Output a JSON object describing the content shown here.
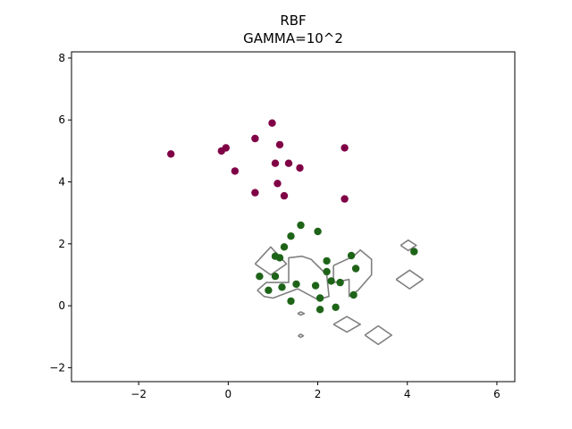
{
  "chart_data": {
    "type": "scatter",
    "title": "RBF",
    "subtitle": "GAMMA=10^2",
    "xlabel": "",
    "ylabel": "",
    "xlim": [
      -3.5,
      6.4
    ],
    "ylim": [
      -2.45,
      8.2
    ],
    "grid": false,
    "xticks": [
      -2,
      0,
      2,
      4,
      6
    ],
    "yticks": [
      -2,
      0,
      2,
      4,
      6,
      8
    ],
    "xtick_labels": [
      "−2",
      "0",
      "2",
      "4",
      "6"
    ],
    "ytick_labels": [
      "−2",
      "0",
      "2",
      "4",
      "6",
      "8"
    ],
    "series": [
      {
        "color": "#800046",
        "points": [
          [
            -1.28,
            4.9
          ],
          [
            -0.15,
            5.0
          ],
          [
            -0.05,
            5.1
          ],
          [
            0.15,
            4.35
          ],
          [
            0.6,
            5.4
          ],
          [
            0.6,
            3.65
          ],
          [
            0.98,
            5.9
          ],
          [
            1.05,
            4.6
          ],
          [
            1.1,
            3.95
          ],
          [
            1.15,
            5.2
          ],
          [
            1.25,
            3.55
          ],
          [
            1.35,
            4.6
          ],
          [
            1.6,
            4.45
          ],
          [
            2.6,
            5.1
          ],
          [
            2.6,
            3.45
          ]
        ]
      },
      {
        "color": "#1e6418",
        "points": [
          [
            0.7,
            0.95
          ],
          [
            0.9,
            0.5
          ],
          [
            1.05,
            1.6
          ],
          [
            1.05,
            0.95
          ],
          [
            1.15,
            1.55
          ],
          [
            1.2,
            0.6
          ],
          [
            1.25,
            1.9
          ],
          [
            1.4,
            2.25
          ],
          [
            1.4,
            0.15
          ],
          [
            1.52,
            0.7
          ],
          [
            1.62,
            2.6
          ],
          [
            1.95,
            0.65
          ],
          [
            2.0,
            2.4
          ],
          [
            2.05,
            0.25
          ],
          [
            2.05,
            -0.12
          ],
          [
            2.2,
            1.45
          ],
          [
            2.2,
            1.1
          ],
          [
            2.3,
            0.8
          ],
          [
            2.4,
            -0.05
          ],
          [
            2.5,
            0.75
          ],
          [
            2.75,
            1.62
          ],
          [
            2.8,
            0.35
          ],
          [
            2.85,
            1.2
          ],
          [
            4.15,
            1.75
          ]
        ]
      }
    ],
    "contours": {
      "color": "#808080",
      "paths": [
        [
          [
            0.6,
            1.35
          ],
          [
            0.95,
            1.9
          ],
          [
            1.3,
            1.35
          ],
          [
            0.95,
            1.0
          ],
          [
            0.6,
            1.35
          ]
        ],
        [
          [
            0.65,
            0.5
          ],
          [
            0.85,
            0.75
          ],
          [
            1.35,
            0.75
          ],
          [
            1.35,
            1.55
          ],
          [
            1.65,
            1.6
          ],
          [
            1.85,
            1.5
          ],
          [
            2.2,
            1.0
          ],
          [
            2.25,
            0.3
          ],
          [
            2.0,
            0.2
          ],
          [
            1.55,
            0.55
          ],
          [
            1.0,
            0.25
          ],
          [
            0.8,
            0.3
          ],
          [
            0.65,
            0.5
          ]
        ],
        [
          [
            2.35,
            1.3
          ],
          [
            2.8,
            1.6
          ],
          [
            2.95,
            1.8
          ],
          [
            3.2,
            1.5
          ],
          [
            3.2,
            1.0
          ],
          [
            2.9,
            0.5
          ],
          [
            2.7,
            0.3
          ],
          [
            2.7,
            0.85
          ],
          [
            2.35,
            0.75
          ],
          [
            2.35,
            1.3
          ]
        ],
        [
          [
            2.35,
            -0.6
          ],
          [
            2.65,
            -0.35
          ],
          [
            2.95,
            -0.6
          ],
          [
            2.65,
            -0.85
          ],
          [
            2.35,
            -0.6
          ]
        ],
        [
          [
            3.05,
            -0.95
          ],
          [
            3.35,
            -0.65
          ],
          [
            3.65,
            -0.95
          ],
          [
            3.35,
            -1.25
          ],
          [
            3.05,
            -0.95
          ]
        ],
        [
          [
            3.75,
            0.85
          ],
          [
            4.05,
            1.15
          ],
          [
            4.35,
            0.85
          ],
          [
            4.05,
            0.55
          ],
          [
            3.75,
            0.85
          ]
        ],
        [
          [
            3.85,
            1.95
          ],
          [
            4.02,
            2.12
          ],
          [
            4.2,
            1.95
          ],
          [
            4.02,
            1.78
          ],
          [
            3.85,
            1.95
          ]
        ],
        [
          [
            1.55,
            -0.25
          ],
          [
            1.62,
            -0.2
          ],
          [
            1.7,
            -0.25
          ],
          [
            1.62,
            -0.3
          ],
          [
            1.55,
            -0.25
          ]
        ],
        [
          [
            1.56,
            -0.97
          ],
          [
            1.62,
            -0.92
          ],
          [
            1.68,
            -0.97
          ],
          [
            1.62,
            -1.02
          ],
          [
            1.56,
            -0.97
          ]
        ]
      ]
    }
  }
}
